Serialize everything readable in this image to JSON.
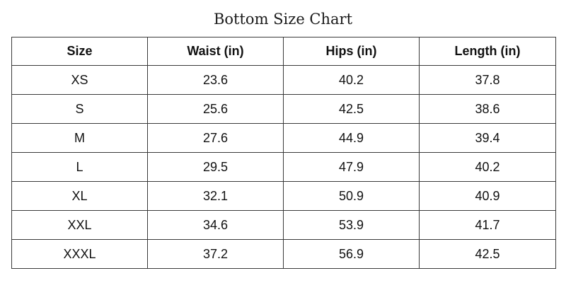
{
  "title": "Bottom Size Chart",
  "headers": [
    "Size",
    "Waist (in)",
    "Hips (in)",
    "Length (in)"
  ],
  "rows": [
    [
      "XS",
      "23.6",
      "40.2",
      "37.8"
    ],
    [
      "S",
      "25.6",
      "42.5",
      "38.6"
    ],
    [
      "M",
      "27.6",
      "44.9",
      "39.4"
    ],
    [
      "L",
      "29.5",
      "47.9",
      "40.2"
    ],
    [
      "XL",
      "32.1",
      "50.9",
      "40.9"
    ],
    [
      "XXL",
      "34.6",
      "53.9",
      "41.7"
    ],
    [
      "XXXL",
      "37.2",
      "56.9",
      "42.5"
    ]
  ]
}
